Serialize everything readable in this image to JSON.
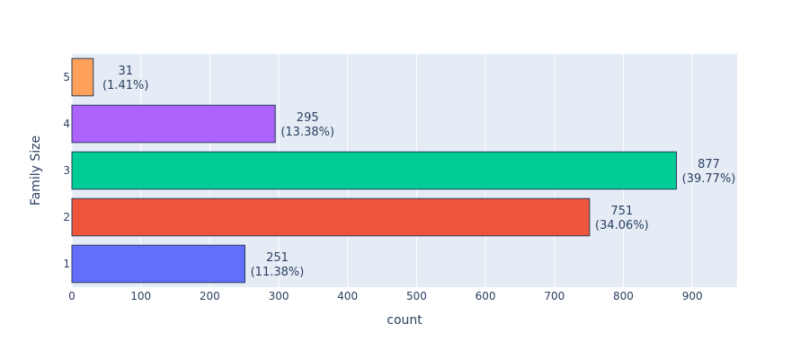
{
  "chart_data": {
    "type": "bar",
    "orientation": "horizontal",
    "title": "",
    "xlabel": "count",
    "ylabel": "Family Size",
    "categories": [
      "1",
      "2",
      "3",
      "4",
      "5"
    ],
    "values": [
      251,
      751,
      877,
      295,
      31
    ],
    "data_labels": [
      {
        "count": "251",
        "percent": "(11.38%)"
      },
      {
        "count": "751",
        "percent": "(34.06%)"
      },
      {
        "count": "877",
        "percent": "(39.77%)"
      },
      {
        "count": "295",
        "percent": "(13.38%)"
      },
      {
        "count": "31",
        "percent": "(1.41%)"
      }
    ],
    "colors": [
      "#636efa",
      "#ef553b",
      "#00cc96",
      "#ab63fa",
      "#ffa15a"
    ],
    "xlim": [
      0,
      965
    ],
    "xticks": [
      "0",
      "100",
      "200",
      "300",
      "400",
      "500",
      "600",
      "700",
      "800",
      "900"
    ],
    "grid": true,
    "plot_background": "#e5ecf6",
    "grid_color": "#ffffff",
    "bar_outline": "#2a3f5f"
  }
}
